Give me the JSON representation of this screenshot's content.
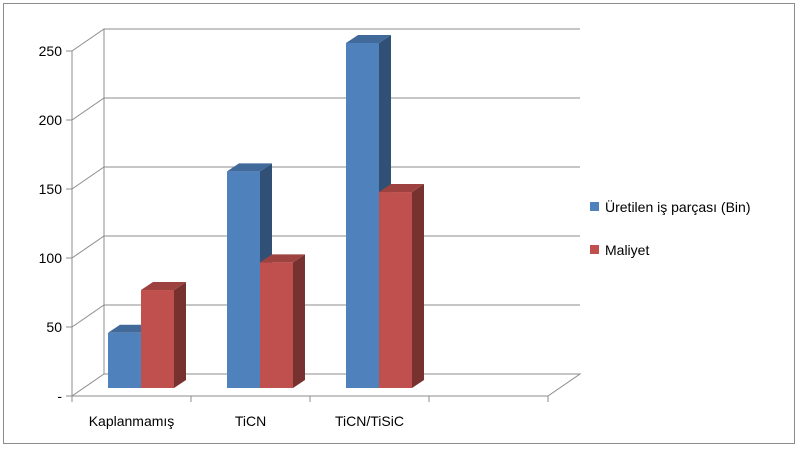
{
  "chart_data": {
    "type": "bar",
    "title": "",
    "xlabel": "",
    "ylabel": "",
    "categories": [
      "Kaplanmamış",
      "TiCN",
      "TiCN/TiSiC"
    ],
    "series": [
      {
        "name": "Üretilen iş parçası (Bin)",
        "values": [
          40,
          157,
          250
        ],
        "color": "#4f81bd"
      },
      {
        "name": "Maliyet",
        "values": [
          71,
          91,
          142
        ],
        "color": "#c0504d"
      }
    ],
    "yticks": [
      "-",
      "50",
      "100",
      "150",
      "200",
      "250"
    ],
    "ylim": [
      0,
      250
    ],
    "grid": true,
    "legend_position": "right",
    "style": "3d-clustered-column"
  }
}
